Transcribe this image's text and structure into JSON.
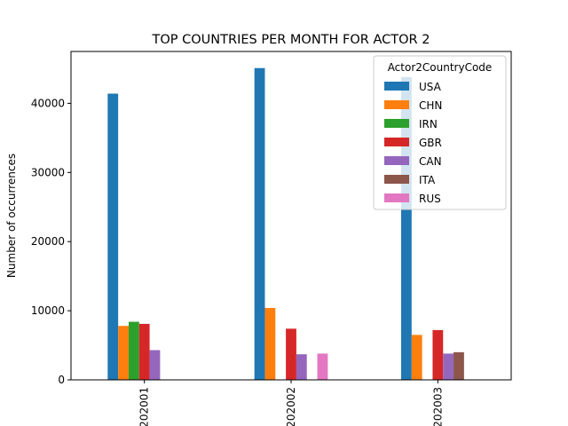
{
  "chart_data": {
    "type": "bar",
    "title": "TOP COUNTRIES PER MONTH FOR ACTOR 2",
    "xlabel": "",
    "ylabel": "Number of occurrences",
    "ylim": [
      0,
      47500
    ],
    "yticks": [
      0,
      10000,
      20000,
      30000,
      40000
    ],
    "yticklabels": [
      "0",
      "10000",
      "20000",
      "30000",
      "40000"
    ],
    "categories": [
      "202001",
      "202002",
      "202003"
    ],
    "legend_title": "Actor2CountryCode",
    "legend_position": "top-right",
    "grid": false,
    "series": [
      {
        "name": "USA",
        "color": "#1f77b4",
        "values": [
          41400,
          45100,
          43800
        ]
      },
      {
        "name": "CHN",
        "color": "#ff7f0e",
        "values": [
          7800,
          10400,
          6500
        ]
      },
      {
        "name": "IRN",
        "color": "#2ca02c",
        "values": [
          8400,
          null,
          null
        ]
      },
      {
        "name": "GBR",
        "color": "#d62728",
        "values": [
          8100,
          7400,
          7200
        ]
      },
      {
        "name": "CAN",
        "color": "#9467bd",
        "values": [
          4300,
          3700,
          3800
        ]
      },
      {
        "name": "ITA",
        "color": "#8c564b",
        "values": [
          null,
          null,
          4000
        ]
      },
      {
        "name": "RUS",
        "color": "#e377c2",
        "values": [
          null,
          3800,
          null
        ]
      }
    ]
  }
}
